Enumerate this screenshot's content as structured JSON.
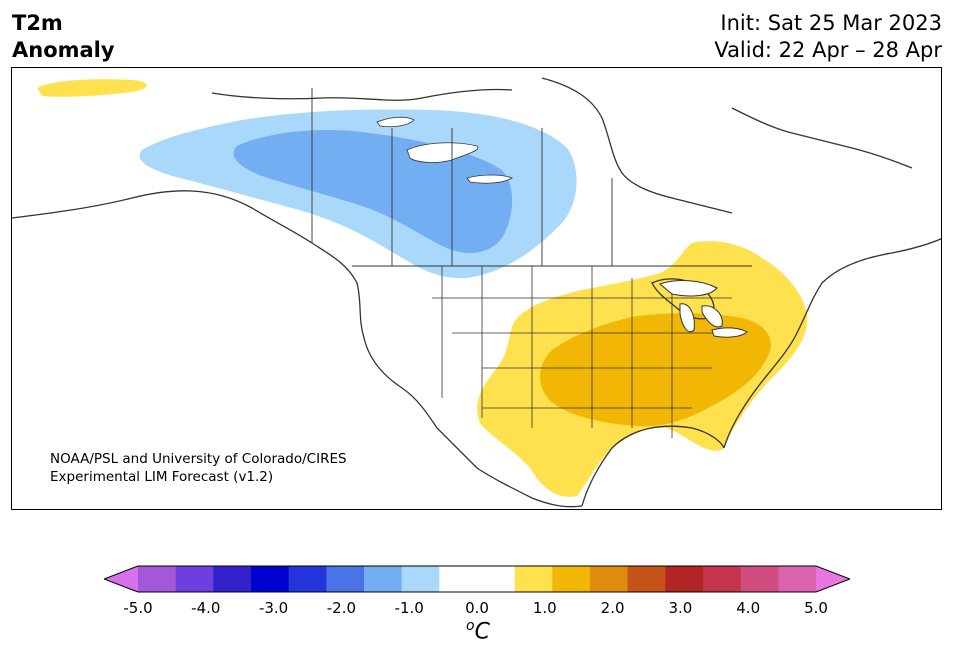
{
  "title": {
    "line1": "T2m",
    "line2": "Anomaly",
    "init": "Init: Sat 25 Mar 2023",
    "valid": "Valid: 22 Apr – 28 Apr"
  },
  "credit": {
    "line1": "NOAA/PSL and University of Colorado/CIRES",
    "line2": "Experimental LIM Forecast (v1.2)"
  },
  "colorbar": {
    "unit_symbol": "o",
    "unit_letter": "C",
    "ticks": [
      "-5.0",
      "-4.0",
      "-3.0",
      "-2.0",
      "-1.0",
      "0.0",
      "1.0",
      "2.0",
      "3.0",
      "4.0",
      "5.0"
    ],
    "colors": [
      "#a357d9",
      "#6d3ee0",
      "#3322cc",
      "#0000d0",
      "#2535dc",
      "#4a74e6",
      "#73aef2",
      "#a9d8fb",
      "#ffffff",
      "#ffffff",
      "#ffe04d",
      "#f2b705",
      "#e08a0e",
      "#c65317",
      "#b12524",
      "#c4344a",
      "#d14d80",
      "#db62ae"
    ],
    "extend_min_color": "#d670eb",
    "extend_max_color": "#e877e0"
  },
  "map": {
    "ocean_color": "#ffffff",
    "land_outline_color": "#333333",
    "anomaly_regions": [
      {
        "name": "Canada cold anomaly",
        "value": "-1.0",
        "color": "#a9d8fb"
      },
      {
        "name": "Canada core cold anomaly",
        "value": "-1.5",
        "color": "#73aef2"
      },
      {
        "name": "Alaska warm anomaly",
        "value": "1.0",
        "color": "#ffe04d"
      },
      {
        "name": "Eastern US warm anomaly",
        "value": "1.0",
        "color": "#ffe04d"
      },
      {
        "name": "Central US core warm anomaly",
        "value": "1.5",
        "color": "#f2b705"
      }
    ]
  }
}
